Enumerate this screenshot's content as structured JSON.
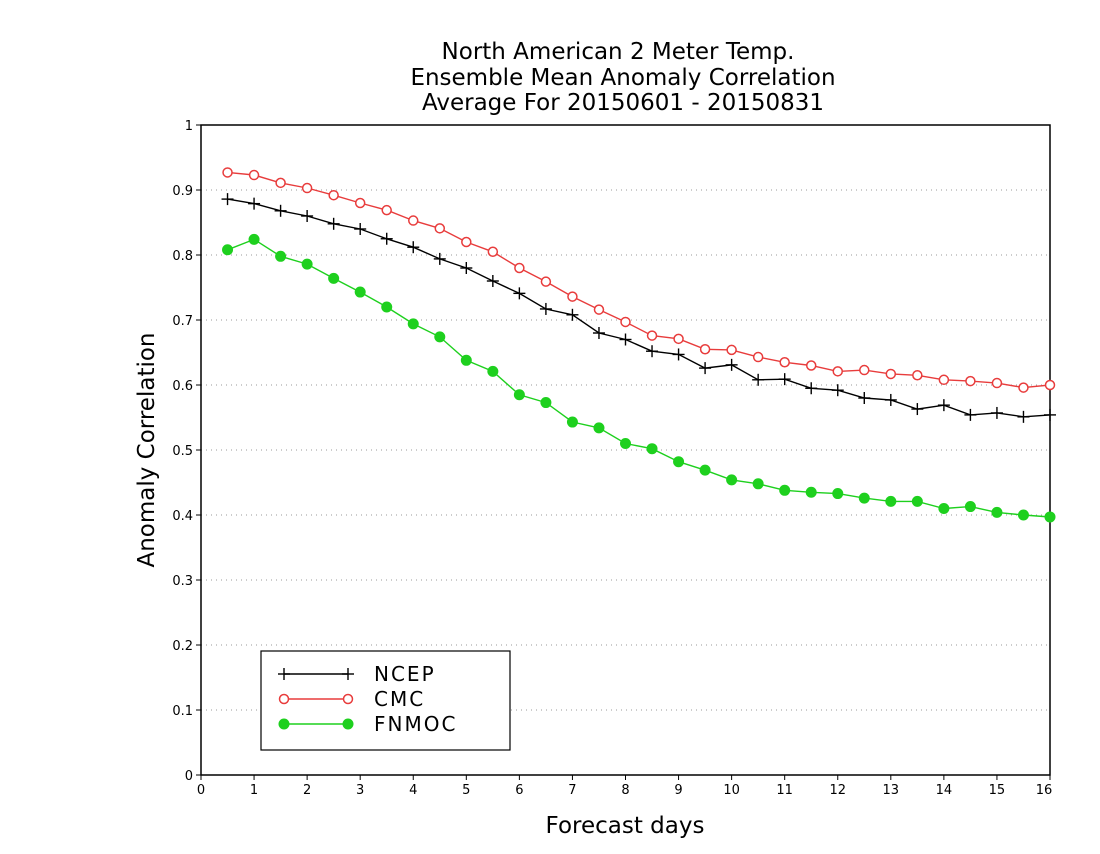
{
  "chart_data": {
    "type": "line",
    "title_lines": [
      "North American 2 Meter Temp.",
      "Ensemble Mean Anomaly Correlation",
      "Average For 20150601 - 20150831"
    ],
    "xlabel": "Forecast days",
    "ylabel": "Anomaly Correlation",
    "xlim": [
      0,
      16
    ],
    "ylim": [
      0,
      1
    ],
    "xticks": [
      0,
      1,
      2,
      3,
      4,
      5,
      6,
      7,
      8,
      9,
      10,
      11,
      12,
      13,
      14,
      15,
      16
    ],
    "yticks": [
      0,
      0.1,
      0.2,
      0.3,
      0.4,
      0.5,
      0.6,
      0.7,
      0.8,
      0.9,
      1
    ],
    "ytick_labels": [
      "0",
      "0.1",
      "0.2",
      "0.3",
      "0.4",
      "0.5",
      "0.6",
      "0.7",
      "0.8",
      "0.9",
      "1"
    ],
    "grid": "horizontal dotted",
    "legend_position": "bottom-left",
    "x": [
      0.5,
      1,
      1.5,
      2,
      2.5,
      3,
      3.5,
      4,
      4.5,
      5,
      5.5,
      6,
      6.5,
      7,
      7.5,
      8,
      8.5,
      9,
      9.5,
      10,
      10.5,
      11,
      11.5,
      12,
      12.5,
      13,
      13.5,
      14,
      14.5,
      15,
      15.5,
      16
    ],
    "series": [
      {
        "name": "NCEP",
        "color": "#000000",
        "marker": "plus",
        "values": [
          0.886,
          0.879,
          0.868,
          0.86,
          0.848,
          0.84,
          0.825,
          0.812,
          0.794,
          0.78,
          0.76,
          0.741,
          0.717,
          0.708,
          0.68,
          0.67,
          0.652,
          0.647,
          0.626,
          0.631,
          0.608,
          0.609,
          0.595,
          0.592,
          0.58,
          0.577,
          0.563,
          0.569,
          0.554,
          0.557,
          0.551,
          0.554
        ]
      },
      {
        "name": "CMC",
        "color": "#e83c3c",
        "marker": "open-circle",
        "values": [
          0.927,
          0.923,
          0.911,
          0.903,
          0.892,
          0.88,
          0.869,
          0.853,
          0.841,
          0.82,
          0.805,
          0.78,
          0.759,
          0.736,
          0.716,
          0.697,
          0.676,
          0.671,
          0.655,
          0.654,
          0.643,
          0.635,
          0.63,
          0.621,
          0.623,
          0.617,
          0.615,
          0.608,
          0.606,
          0.603,
          0.596,
          0.6
        ]
      },
      {
        "name": "FNMOC",
        "color": "#1ed01e",
        "marker": "filled-circle",
        "values": [
          0.808,
          0.824,
          0.798,
          0.786,
          0.764,
          0.743,
          0.72,
          0.694,
          0.674,
          0.638,
          0.621,
          0.585,
          0.573,
          0.543,
          0.534,
          0.51,
          0.502,
          0.482,
          0.469,
          0.454,
          0.448,
          0.438,
          0.435,
          0.433,
          0.426,
          0.421,
          0.421,
          0.41,
          0.413,
          0.404,
          0.4,
          0.397
        ]
      }
    ]
  }
}
